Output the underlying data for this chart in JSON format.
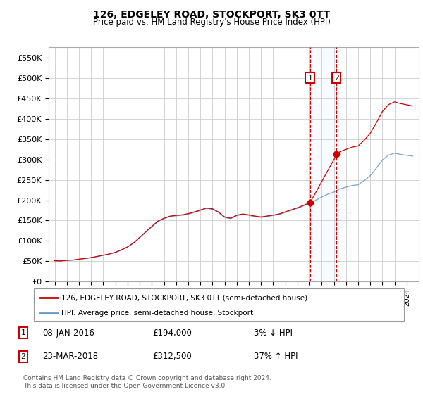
{
  "title": "126, EDGELEY ROAD, STOCKPORT, SK3 0TT",
  "subtitle": "Price paid vs. HM Land Registry's House Price Index (HPI)",
  "legend_line1": "126, EDGELEY ROAD, STOCKPORT, SK3 0TT (semi-detached house)",
  "legend_line2": "HPI: Average price, semi-detached house, Stockport",
  "sale1_date": "08-JAN-2016",
  "sale1_price": 194000,
  "sale1_label": "3% ↓ HPI",
  "sale2_date": "23-MAR-2018",
  "sale2_price": 312500,
  "sale2_label": "37% ↑ HPI",
  "sale1_x": 2016.03,
  "sale2_x": 2018.22,
  "ylabel_ticks": [
    "£0",
    "£50K",
    "£100K",
    "£150K",
    "£200K",
    "£250K",
    "£300K",
    "£350K",
    "£400K",
    "£450K",
    "£500K",
    "£550K"
  ],
  "ytick_vals": [
    0,
    50000,
    100000,
    150000,
    200000,
    250000,
    300000,
    350000,
    400000,
    450000,
    500000,
    550000
  ],
  "xlim": [
    1994.5,
    2025.0
  ],
  "ylim": [
    0,
    575000
  ],
  "footer": "Contains HM Land Registry data © Crown copyright and database right 2024.\nThis data is licensed under the Open Government Licence v3.0.",
  "line_color_red": "#cc0000",
  "line_color_blue": "#6699cc",
  "grid_color": "#cccccc",
  "shade_color": "#ddeeff"
}
